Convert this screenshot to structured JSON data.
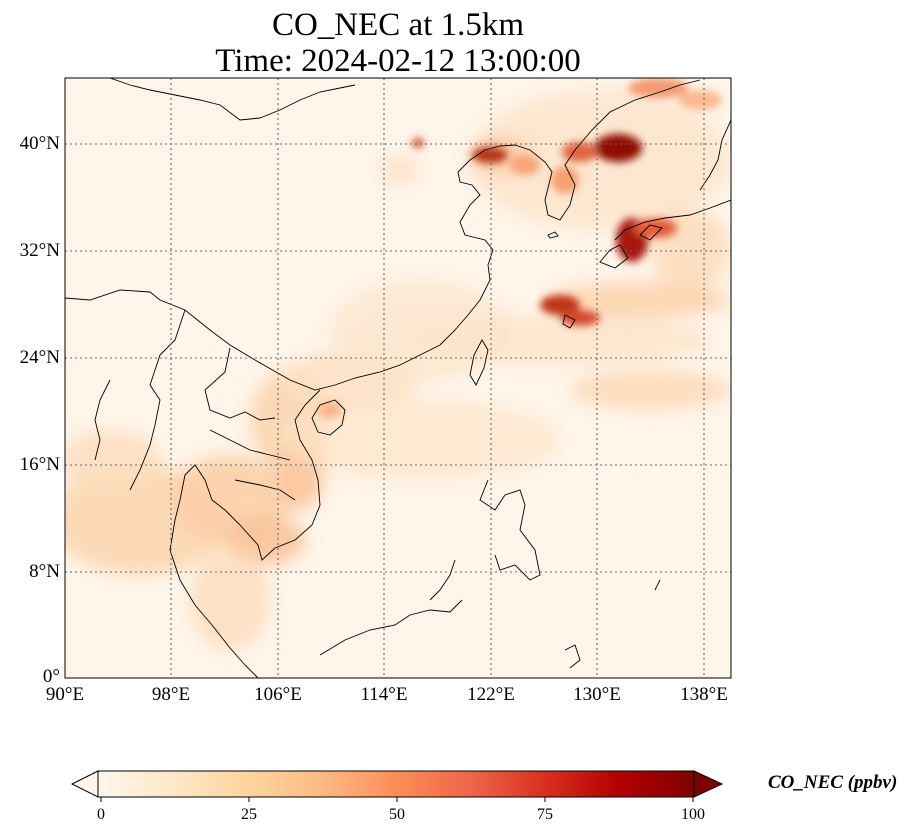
{
  "map": {
    "title_line1": "CO_NEC at 1.5km",
    "title_line2": "Time: 2024-02-12 13:00:00",
    "variable": "CO_NEC",
    "level": "1.5km",
    "time": "2024-02-12 13:00:00",
    "projection": "PlateCarree",
    "extent": {
      "lon_min": 90,
      "lon_max": 140,
      "lat_min": 0,
      "lat_max": 45
    },
    "gridlines": "dotted grey",
    "lat_ticks": [
      "0°",
      "8°N",
      "16°N",
      "24°N",
      "32°N",
      "40°N"
    ],
    "lon_ticks": [
      "90°E",
      "98°E",
      "106°E",
      "114°E",
      "122°E",
      "130°E",
      "138°E"
    ],
    "colormap": "OrRd",
    "hotspots": [
      {
        "region": "Korea / Yellow Sea coast",
        "level": "high"
      },
      {
        "region": "Western Japan",
        "level": "high"
      },
      {
        "region": "East China Sea",
        "level": "high"
      },
      {
        "region": "Indochina (Vietnam, Cambodia, Thailand)",
        "level": "moderate"
      },
      {
        "region": "South China",
        "level": "moderate"
      }
    ]
  },
  "colorbar": {
    "label": "CO_NEC (ppbv)",
    "ticks": [
      "0",
      "25",
      "50",
      "75",
      "100"
    ],
    "min": 0,
    "max": 100,
    "extend": "both",
    "colors": [
      "#fff7ec",
      "#fee8c8",
      "#fdd49e",
      "#fdbb84",
      "#fc8d59",
      "#ef6548",
      "#d7301f",
      "#b30000",
      "#7f0000"
    ]
  }
}
